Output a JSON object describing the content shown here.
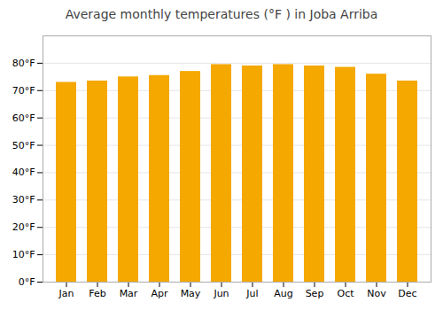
{
  "chart_data": {
    "type": "bar",
    "title": "Average monthly temperatures (°F ) in Joba Arriba",
    "categories": [
      "Jan",
      "Feb",
      "Mar",
      "Apr",
      "May",
      "Jun",
      "Jul",
      "Aug",
      "Sep",
      "Oct",
      "Nov",
      "Dec"
    ],
    "values": [
      73,
      73.5,
      75,
      75.5,
      77,
      79.5,
      79,
      79.5,
      79,
      78.5,
      76,
      73.5
    ],
    "color": "#F5A800",
    "ylim": [
      0,
      90
    ],
    "yticks": [
      {
        "value": 0,
        "label": "0°F"
      },
      {
        "value": 10,
        "label": "10°F"
      },
      {
        "value": 20,
        "label": "20°F"
      },
      {
        "value": 30,
        "label": "30°F"
      },
      {
        "value": 40,
        "label": "40°F"
      },
      {
        "value": 50,
        "label": "50°F"
      },
      {
        "value": 60,
        "label": "60°F"
      },
      {
        "value": 70,
        "label": "70°F"
      },
      {
        "value": 80,
        "label": "80°F"
      }
    ],
    "grid": true
  }
}
